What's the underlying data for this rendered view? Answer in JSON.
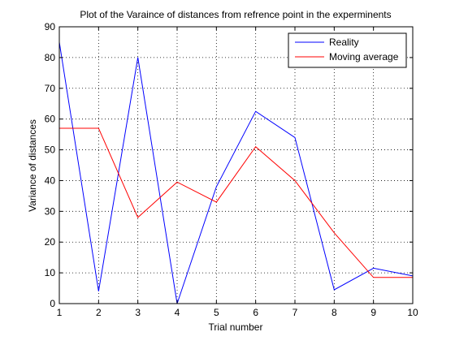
{
  "chart_data": {
    "type": "line",
    "title": "Plot of the Varaince of distances from refrence point in the experminents",
    "xlabel": "Trial number",
    "ylabel": "Variance of distances",
    "x": [
      1,
      2,
      3,
      4,
      5,
      6,
      7,
      8,
      9,
      10
    ],
    "xlim": [
      1,
      10
    ],
    "ylim": [
      0,
      90
    ],
    "xticks": [
      "1",
      "2",
      "3",
      "4",
      "5",
      "6",
      "7",
      "8",
      "9",
      "10"
    ],
    "yticks": [
      "0",
      "10",
      "20",
      "30",
      "40",
      "50",
      "60",
      "70",
      "80",
      "90"
    ],
    "grid": true,
    "legend_position": "top-right",
    "series": [
      {
        "name": "Reality",
        "color": "#0000ff",
        "values": [
          85,
          4,
          80,
          0,
          38,
          62.5,
          54,
          4.5,
          11.5,
          9
        ]
      },
      {
        "name": "Moving average",
        "color": "#ff0000",
        "values": [
          57,
          57,
          28,
          39.5,
          33,
          51,
          40,
          23,
          8.5,
          8.5
        ]
      }
    ]
  }
}
